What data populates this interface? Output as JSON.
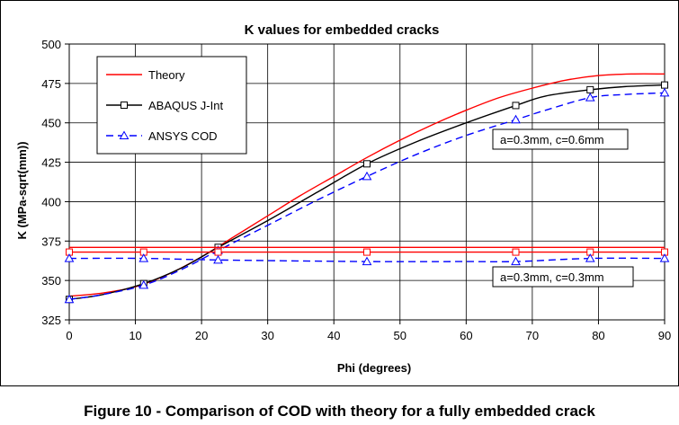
{
  "caption": "Figure 10 - Comparison of COD with theory for a fully embedded crack",
  "colors": {
    "theory": "#ff0000",
    "abaqus": "#000000",
    "ansys": "#0000ff",
    "grid": "#000000",
    "plot_background": "#ffffff"
  },
  "chart_data": {
    "type": "line",
    "title": "K values for embedded cracks",
    "xlabel": "Phi (degrees)",
    "ylabel": "K (MPa-sqrt(mm))",
    "xlim": [
      0,
      90
    ],
    "ylim": [
      325,
      500
    ],
    "xticks": [
      0,
      10,
      20,
      30,
      40,
      50,
      60,
      70,
      80,
      90
    ],
    "yticks": [
      325,
      350,
      375,
      400,
      425,
      450,
      475,
      500
    ],
    "grid": true,
    "legend_position": "top-left",
    "legend": [
      "Theory",
      "ABAQUS J-Int",
      "ANSYS COD"
    ],
    "annotations": [
      "a=0.3mm, c=0.6mm",
      "a=0.3mm, c=0.3mm"
    ],
    "series": [
      {
        "name": "Theory",
        "group": "a=0.3mm, c=0.6mm",
        "style": "solid",
        "marker": "none",
        "color": "#ff0000",
        "x": [
          0,
          5,
          10,
          15,
          20,
          25,
          30,
          35,
          40,
          45,
          50,
          55,
          60,
          65,
          70,
          75,
          80,
          85,
          90
        ],
        "y": [
          340,
          342,
          346,
          354,
          365,
          378,
          391,
          404,
          416,
          428,
          439,
          449,
          458,
          466,
          472,
          477,
          480,
          481,
          481
        ]
      },
      {
        "name": "ABAQUS J-Int",
        "group": "a=0.3mm, c=0.6mm",
        "style": "solid",
        "marker": "square",
        "color": "#000000",
        "x": [
          0,
          11.25,
          22.5,
          45,
          67.5,
          78.75,
          90
        ],
        "y": [
          338,
          348,
          371,
          424,
          461,
          471,
          474
        ],
        "curve_x": [
          0,
          5,
          11.25,
          17,
          22.5,
          30,
          37.5,
          45,
          52.5,
          60,
          67.5,
          72,
          78.75,
          84,
          90
        ],
        "curve_y": [
          338,
          341,
          348,
          358,
          371,
          388,
          406,
          424,
          438,
          450,
          461,
          467,
          471,
          473,
          474
        ]
      },
      {
        "name": "ANSYS COD",
        "group": "a=0.3mm, c=0.6mm",
        "style": "dashed",
        "marker": "triangle",
        "color": "#0000ff",
        "x": [
          0,
          11.25,
          22.5,
          45,
          67.5,
          78.75,
          90
        ],
        "y": [
          338,
          347,
          369,
          416,
          452,
          466,
          469
        ],
        "curve_x": [
          0,
          5,
          11.25,
          17,
          22.5,
          30,
          37.5,
          45,
          52.5,
          60,
          67.5,
          72,
          78.75,
          84,
          90
        ],
        "curve_y": [
          338,
          341,
          347,
          357,
          369,
          385,
          401,
          416,
          430,
          442,
          452,
          458,
          466,
          468,
          469
        ]
      },
      {
        "name": "Theory",
        "group": "a=0.3mm, c=0.3mm",
        "style": "solid",
        "marker": "none",
        "color": "#ff0000",
        "x": [
          0,
          90
        ],
        "y": [
          371,
          371
        ]
      },
      {
        "name": "ABAQUS J-Int",
        "group": "a=0.3mm, c=0.3mm",
        "style": "solid",
        "marker": "square",
        "color": "#ff0000",
        "x": [
          0,
          11.25,
          22.5,
          45,
          67.5,
          78.75,
          90
        ],
        "y": [
          368,
          368,
          368,
          368,
          368,
          368,
          368
        ]
      },
      {
        "name": "ANSYS COD",
        "group": "a=0.3mm, c=0.3mm",
        "style": "dashed",
        "marker": "triangle",
        "color": "#0000ff",
        "x": [
          0,
          11.25,
          22.5,
          45,
          67.5,
          78.75,
          90
        ],
        "y": [
          364,
          364,
          363,
          362,
          362,
          364,
          364
        ],
        "curve_x": [
          0,
          11.25,
          22.5,
          45,
          60,
          67.5,
          78.75,
          90
        ],
        "curve_y": [
          364,
          364,
          363,
          362,
          362,
          362,
          364,
          364
        ]
      }
    ]
  }
}
